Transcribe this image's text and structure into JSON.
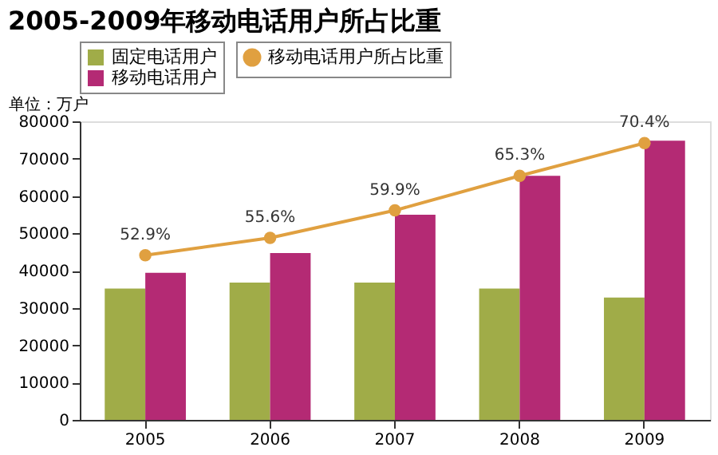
{
  "chart_data": {
    "type": "bar",
    "title": "2005-2009年移动电话用户所占比重",
    "ylabel": "单位：万户",
    "categories": [
      "2005",
      "2006",
      "2007",
      "2008",
      "2009"
    ],
    "series": [
      {
        "name": "固定电话用户",
        "color": "#a0ac48",
        "values": [
          35200,
          36800,
          36800,
          35200,
          32800
        ]
      },
      {
        "name": "移动电话用户",
        "color": "#b42a74",
        "values": [
          39400,
          44700,
          55000,
          65400,
          74800
        ]
      },
      {
        "name": "移动电话用户所占比重",
        "type": "line",
        "axis": "y2",
        "color": "#e0a040",
        "marker": "circle",
        "values": [
          52.9,
          55.6,
          59.9,
          65.3,
          70.4
        ],
        "value_labels": [
          "52.9%",
          "55.6%",
          "59.9%",
          "65.3%",
          "70.4%"
        ]
      }
    ],
    "ylim": [
      0,
      80000
    ],
    "yticks": [
      0,
      10000,
      20000,
      30000,
      40000,
      50000,
      60000,
      70000,
      80000
    ],
    "y2lim": [
      27.2,
      73.8
    ],
    "tick_labels": "xy",
    "legend": "top",
    "grid": false
  }
}
